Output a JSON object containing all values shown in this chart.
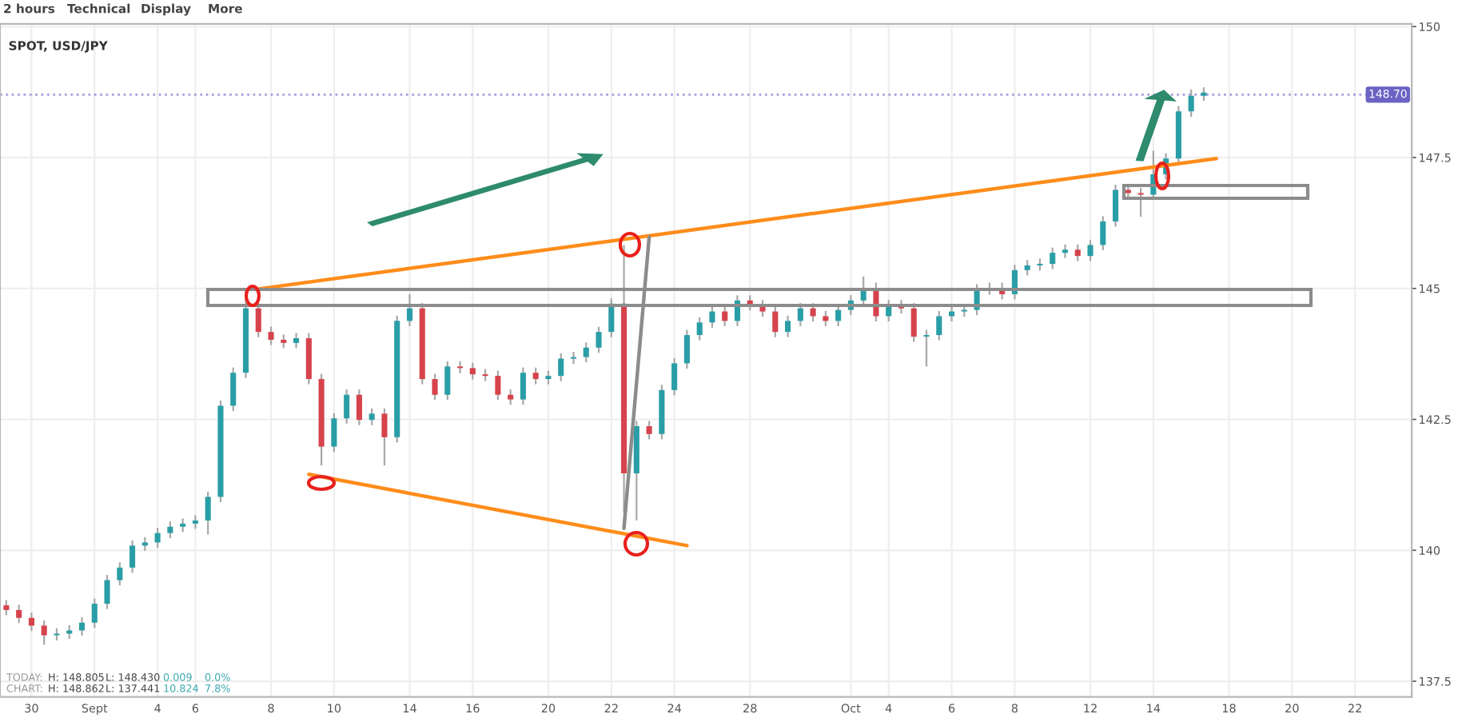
{
  "chart_data": {
    "type": "candlestick",
    "title": "SPOT, USD/JPY",
    "categories": [
      null,
      null,
      "30",
      null,
      null,
      null,
      null,
      "Sept",
      null,
      null,
      null,
      null,
      "4",
      null,
      null,
      "6",
      null,
      null,
      null,
      null,
      null,
      "8",
      null,
      null,
      null,
      null,
      "10",
      null,
      null,
      null,
      null,
      null,
      "14",
      null,
      null,
      null,
      null,
      "16",
      null,
      null,
      null,
      null,
      null,
      "20",
      null,
      null,
      null,
      null,
      "22",
      null,
      null,
      null,
      null,
      "24",
      null,
      null,
      null,
      null,
      null,
      "28",
      null,
      null,
      null,
      null,
      null,
      null,
      null,
      "Oct",
      null,
      null,
      "4",
      null,
      null,
      null,
      null,
      "6",
      null,
      null,
      null,
      null,
      "8",
      null,
      null,
      null,
      null,
      null,
      "12",
      null,
      null,
      null,
      null,
      "14",
      null,
      null,
      null,
      null,
      null,
      "18",
      null,
      null,
      null,
      null,
      "20",
      null,
      null,
      null,
      null,
      "22",
      null,
      null,
      null,
      null
    ],
    "ohlc": [
      [
        138.95,
        139.05,
        138.76,
        138.86
      ],
      [
        138.86,
        138.96,
        138.61,
        138.71
      ],
      [
        138.71,
        138.81,
        138.46,
        138.56
      ],
      [
        138.56,
        138.66,
        138.2,
        138.38
      ],
      [
        138.38,
        138.51,
        138.28,
        138.41
      ],
      [
        138.41,
        138.57,
        138.31,
        138.47
      ],
      [
        138.47,
        138.72,
        138.37,
        138.62
      ],
      [
        138.62,
        139.08,
        138.52,
        138.98
      ],
      [
        138.98,
        139.53,
        138.88,
        139.43
      ],
      [
        139.43,
        139.77,
        139.33,
        139.67
      ],
      [
        139.67,
        140.19,
        139.57,
        140.09
      ],
      [
        140.09,
        140.25,
        139.99,
        140.15
      ],
      [
        140.15,
        140.43,
        140.05,
        140.33
      ],
      [
        140.33,
        140.55,
        140.23,
        140.45
      ],
      [
        140.45,
        140.61,
        140.35,
        140.51
      ],
      [
        140.51,
        140.67,
        140.41,
        140.57
      ],
      [
        140.57,
        141.12,
        140.3,
        141.02
      ],
      [
        141.02,
        142.86,
        140.92,
        142.76
      ],
      [
        142.76,
        143.49,
        142.66,
        143.39
      ],
      [
        143.39,
        144.98,
        143.29,
        144.62
      ],
      [
        144.62,
        144.72,
        144.07,
        144.17
      ],
      [
        144.17,
        144.27,
        143.92,
        144.02
      ],
      [
        144.02,
        144.12,
        143.86,
        143.96
      ],
      [
        143.96,
        144.15,
        143.86,
        144.05
      ],
      [
        144.05,
        144.15,
        143.17,
        143.27
      ],
      [
        143.27,
        143.37,
        141.62,
        141.98
      ],
      [
        141.98,
        142.62,
        141.88,
        142.52
      ],
      [
        142.52,
        143.07,
        142.42,
        142.97
      ],
      [
        142.97,
        143.07,
        142.39,
        142.49
      ],
      [
        142.49,
        142.71,
        142.39,
        142.61
      ],
      [
        142.61,
        142.71,
        141.62,
        142.16
      ],
      [
        142.16,
        144.48,
        142.06,
        144.38
      ],
      [
        144.38,
        144.89,
        144.28,
        144.62
      ],
      [
        144.62,
        144.72,
        143.17,
        143.27
      ],
      [
        143.27,
        143.37,
        142.87,
        142.97
      ],
      [
        142.97,
        143.61,
        142.87,
        143.51
      ],
      [
        143.51,
        143.61,
        143.38,
        143.48
      ],
      [
        143.48,
        143.58,
        143.26,
        143.36
      ],
      [
        143.36,
        143.46,
        143.23,
        143.33
      ],
      [
        143.33,
        143.43,
        142.87,
        142.97
      ],
      [
        142.97,
        143.07,
        142.78,
        142.88
      ],
      [
        142.88,
        143.49,
        142.78,
        143.39
      ],
      [
        143.39,
        143.49,
        143.17,
        143.27
      ],
      [
        143.27,
        143.43,
        143.17,
        143.33
      ],
      [
        143.33,
        143.76,
        143.23,
        143.66
      ],
      [
        143.66,
        143.79,
        143.56,
        143.69
      ],
      [
        143.69,
        143.97,
        143.59,
        143.87
      ],
      [
        143.87,
        144.27,
        143.77,
        144.17
      ],
      [
        144.17,
        144.81,
        144.07,
        144.71
      ],
      [
        144.71,
        145.83,
        140.72,
        141.47
      ],
      [
        141.47,
        142.47,
        140.57,
        142.37
      ],
      [
        142.37,
        142.47,
        142.12,
        142.22
      ],
      [
        142.22,
        143.16,
        142.12,
        143.06
      ],
      [
        143.06,
        143.67,
        142.96,
        143.57
      ],
      [
        143.57,
        144.21,
        143.47,
        144.11
      ],
      [
        144.11,
        144.45,
        144.01,
        144.35
      ],
      [
        144.35,
        144.66,
        144.25,
        144.56
      ],
      [
        144.56,
        144.66,
        144.28,
        144.38
      ],
      [
        144.38,
        144.87,
        144.28,
        144.77
      ],
      [
        144.77,
        144.87,
        144.58,
        144.68
      ],
      [
        144.68,
        144.78,
        144.46,
        144.56
      ],
      [
        144.56,
        144.66,
        144.07,
        144.17
      ],
      [
        144.17,
        144.48,
        144.07,
        144.38
      ],
      [
        144.38,
        144.72,
        144.28,
        144.62
      ],
      [
        144.62,
        144.72,
        144.37,
        144.47
      ],
      [
        144.47,
        144.57,
        144.28,
        144.38
      ],
      [
        144.38,
        144.69,
        144.28,
        144.59
      ],
      [
        144.59,
        144.87,
        144.49,
        144.77
      ],
      [
        144.77,
        145.23,
        144.67,
        145.01
      ],
      [
        145.01,
        145.11,
        144.37,
        144.47
      ],
      [
        144.47,
        144.78,
        144.37,
        144.68
      ],
      [
        144.68,
        144.78,
        144.52,
        144.62
      ],
      [
        144.62,
        144.72,
        143.98,
        144.08
      ],
      [
        144.08,
        144.21,
        143.51,
        144.11
      ],
      [
        144.11,
        144.57,
        144.01,
        144.47
      ],
      [
        144.47,
        144.66,
        144.37,
        144.56
      ],
      [
        144.56,
        144.69,
        144.46,
        144.59
      ],
      [
        144.59,
        145.08,
        144.49,
        144.98
      ],
      [
        144.98,
        145.11,
        144.88,
        145.01
      ],
      [
        145.01,
        145.11,
        144.79,
        144.89
      ],
      [
        144.89,
        145.45,
        144.79,
        145.35
      ],
      [
        145.35,
        145.54,
        145.25,
        145.44
      ],
      [
        145.44,
        145.57,
        145.34,
        145.47
      ],
      [
        145.47,
        145.78,
        145.37,
        145.68
      ],
      [
        145.68,
        145.84,
        145.58,
        145.74
      ],
      [
        145.74,
        145.84,
        145.52,
        145.62
      ],
      [
        145.62,
        145.93,
        145.52,
        145.83
      ],
      [
        145.83,
        146.38,
        145.73,
        146.28
      ],
      [
        146.28,
        146.98,
        146.18,
        146.88
      ],
      [
        146.88,
        146.98,
        146.72,
        146.82
      ],
      [
        146.82,
        146.92,
        146.37,
        146.79
      ],
      [
        146.79,
        147.63,
        146.69,
        147.18
      ],
      [
        147.18,
        147.58,
        147.08,
        147.48
      ],
      [
        147.48,
        148.48,
        147.38,
        148.38
      ],
      [
        148.38,
        148.8,
        148.28,
        148.68
      ],
      [
        148.68,
        148.84,
        148.58,
        148.74
      ],
      null,
      null,
      null,
      null,
      null,
      null,
      null,
      null,
      null,
      null,
      null,
      null,
      null,
      null,
      null,
      null
    ],
    "colors": [
      "#d6434c",
      "#d6434c",
      "#d6434c",
      "#d6434c",
      "#2a9ea6",
      "#2a9ea6",
      "#2a9ea6",
      "#2a9ea6",
      "#2a9ea6",
      "#2a9ea6",
      "#2a9ea6",
      "#2a9ea6",
      "#2a9ea6",
      "#2a9ea6",
      "#2a9ea6",
      "#2a9ea6",
      "#2a9ea6",
      "#2a9ea6",
      "#2a9ea6",
      "#2a9ea6",
      "#d6434c",
      "#d6434c",
      "#d6434c",
      "#2a9ea6",
      "#d6434c",
      "#d6434c",
      "#2a9ea6",
      "#2a9ea6",
      "#d6434c",
      "#2a9ea6",
      "#d6434c",
      "#2a9ea6",
      "#2a9ea6",
      "#d6434c",
      "#d6434c",
      "#2a9ea6",
      "#d6434c",
      "#d6434c",
      "#d6434c",
      "#d6434c",
      "#d6434c",
      "#2a9ea6",
      "#d6434c",
      "#2a9ea6",
      "#2a9ea6",
      "#2a9ea6",
      "#2a9ea6",
      "#2a9ea6",
      "#2a9ea6",
      "#d6434c",
      "#2a9ea6",
      "#d6434c",
      "#2a9ea6",
      "#2a9ea6",
      "#2a9ea6",
      "#2a9ea6",
      "#2a9ea6",
      "#d6434c",
      "#2a9ea6",
      "#d6434c",
      "#d6434c",
      "#d6434c",
      "#2a9ea6",
      "#2a9ea6",
      "#d6434c",
      "#d6434c",
      "#2a9ea6",
      "#2a9ea6",
      "#2a9ea6",
      "#d6434c",
      "#2a9ea6",
      "#d6434c",
      "#d6434c",
      "#2a9ea6",
      "#2a9ea6",
      "#2a9ea6",
      "#2a9ea6",
      "#2a9ea6",
      "#2a9ea6",
      "#d6434c",
      "#2a9ea6",
      "#2a9ea6",
      "#2a9ea6",
      "#2a9ea6",
      "#2a9ea6",
      "#d6434c",
      "#2a9ea6",
      "#2a9ea6",
      "#2a9ea6",
      "#d6434c",
      "#d6434c",
      "#2a9ea6",
      "#2a9ea6",
      "#2a9ea6",
      "#2a9ea6",
      "#2a9ea6",
      null,
      null,
      null,
      null,
      null,
      null,
      null,
      null,
      null,
      null,
      null,
      null,
      null,
      null,
      null,
      null
    ],
    "series": [
      {
        "type": "line",
        "color": "#ff8c1a",
        "values": [
          null,
          null,
          null,
          null,
          null,
          null,
          null,
          null,
          null,
          null,
          null,
          null,
          null,
          null,
          null,
          null,
          null,
          null,
          null,
          null,
          144.99,
          null,
          null,
          null,
          null,
          null,
          null,
          null,
          null,
          null,
          null,
          null,
          null,
          null,
          null,
          null,
          null,
          null,
          null,
          null,
          null,
          null,
          null,
          null,
          null,
          null,
          null,
          null,
          null,
          null,
          null,
          null,
          null,
          null,
          null,
          null,
          null,
          null,
          null,
          null,
          null,
          null,
          null,
          null,
          null,
          null,
          null,
          null,
          null,
          null,
          null,
          null,
          null,
          null,
          null,
          null,
          null,
          null,
          null,
          null,
          null,
          null,
          null,
          null,
          null,
          null,
          null,
          null,
          null,
          null,
          null,
          null,
          null,
          null,
          null,
          null,
          147.48,
          null,
          null,
          null,
          null,
          null,
          null,
          null,
          null,
          null,
          null,
          null,
          null,
          null,
          null,
          null
        ]
      },
      {
        "type": "line",
        "color": "#ff8c1a",
        "values": [
          null,
          null,
          null,
          null,
          null,
          null,
          null,
          null,
          null,
          null,
          null,
          null,
          null,
          null,
          null,
          null,
          null,
          null,
          null,
          null,
          null,
          null,
          null,
          null,
          141.45,
          null,
          null,
          null,
          null,
          null,
          null,
          null,
          null,
          null,
          null,
          null,
          null,
          null,
          null,
          null,
          null,
          null,
          null,
          null,
          null,
          null,
          null,
          null,
          null,
          null,
          null,
          null,
          null,
          null,
          140.09,
          null,
          null,
          null,
          null,
          null,
          null,
          null,
          null,
          null,
          null,
          null,
          null,
          null,
          null,
          null,
          null,
          null,
          null,
          null,
          null,
          null,
          null,
          null,
          null,
          null,
          null,
          null,
          null,
          null,
          null,
          null,
          null,
          null,
          null,
          null,
          null,
          null,
          null,
          null,
          null,
          null,
          null,
          null,
          null,
          null,
          null,
          null,
          null,
          null,
          null,
          null,
          null,
          null,
          null,
          null,
          null,
          null
        ]
      },
      {
        "type": "line",
        "color": "#8c8c8c",
        "values": [
          null,
          null,
          null,
          null,
          null,
          null,
          null,
          null,
          null,
          null,
          null,
          null,
          null,
          null,
          null,
          null,
          null,
          null,
          null,
          null,
          null,
          null,
          null,
          null,
          null,
          null,
          null,
          null,
          null,
          null,
          null,
          null,
          null,
          null,
          null,
          null,
          null,
          null,
          null,
          null,
          null,
          null,
          null,
          null,
          null,
          null,
          null,
          null,
          null,
          140.42,
          null,
          145.98,
          null,
          null,
          null,
          null,
          null,
          null,
          null,
          null,
          null,
          null,
          null,
          null,
          null,
          null,
          null,
          null,
          null,
          null,
          null,
          null,
          null,
          null,
          null,
          null,
          null,
          null,
          null,
          null,
          null,
          null,
          null,
          null,
          null,
          null,
          null,
          null,
          null,
          null,
          null,
          null,
          null,
          null,
          null,
          null,
          null,
          null,
          null,
          null,
          null,
          null,
          null,
          null,
          null,
          null,
          null,
          null,
          null,
          null,
          null,
          null
        ]
      }
    ],
    "ylim": [
      137.2,
      150.05
    ],
    "yticks": [
      137.5,
      140,
      142.5,
      145,
      147.5,
      150
    ],
    "grid": true,
    "ref_lines": [
      {
        "axis": "y",
        "value": 148.7,
        "label": "148.70",
        "color": "#6b63c4",
        "line_style": "dotted"
      }
    ],
    "annotations": [
      "2 hours",
      "Technical",
      "Display",
      "More",
      "TODAY:",
      "H: 148.805",
      "L: 148.430",
      "0.009",
      "0.0%",
      "CHART:",
      "H: 148.862",
      "L: 137.441",
      "10.824",
      "7.8%"
    ]
  }
}
